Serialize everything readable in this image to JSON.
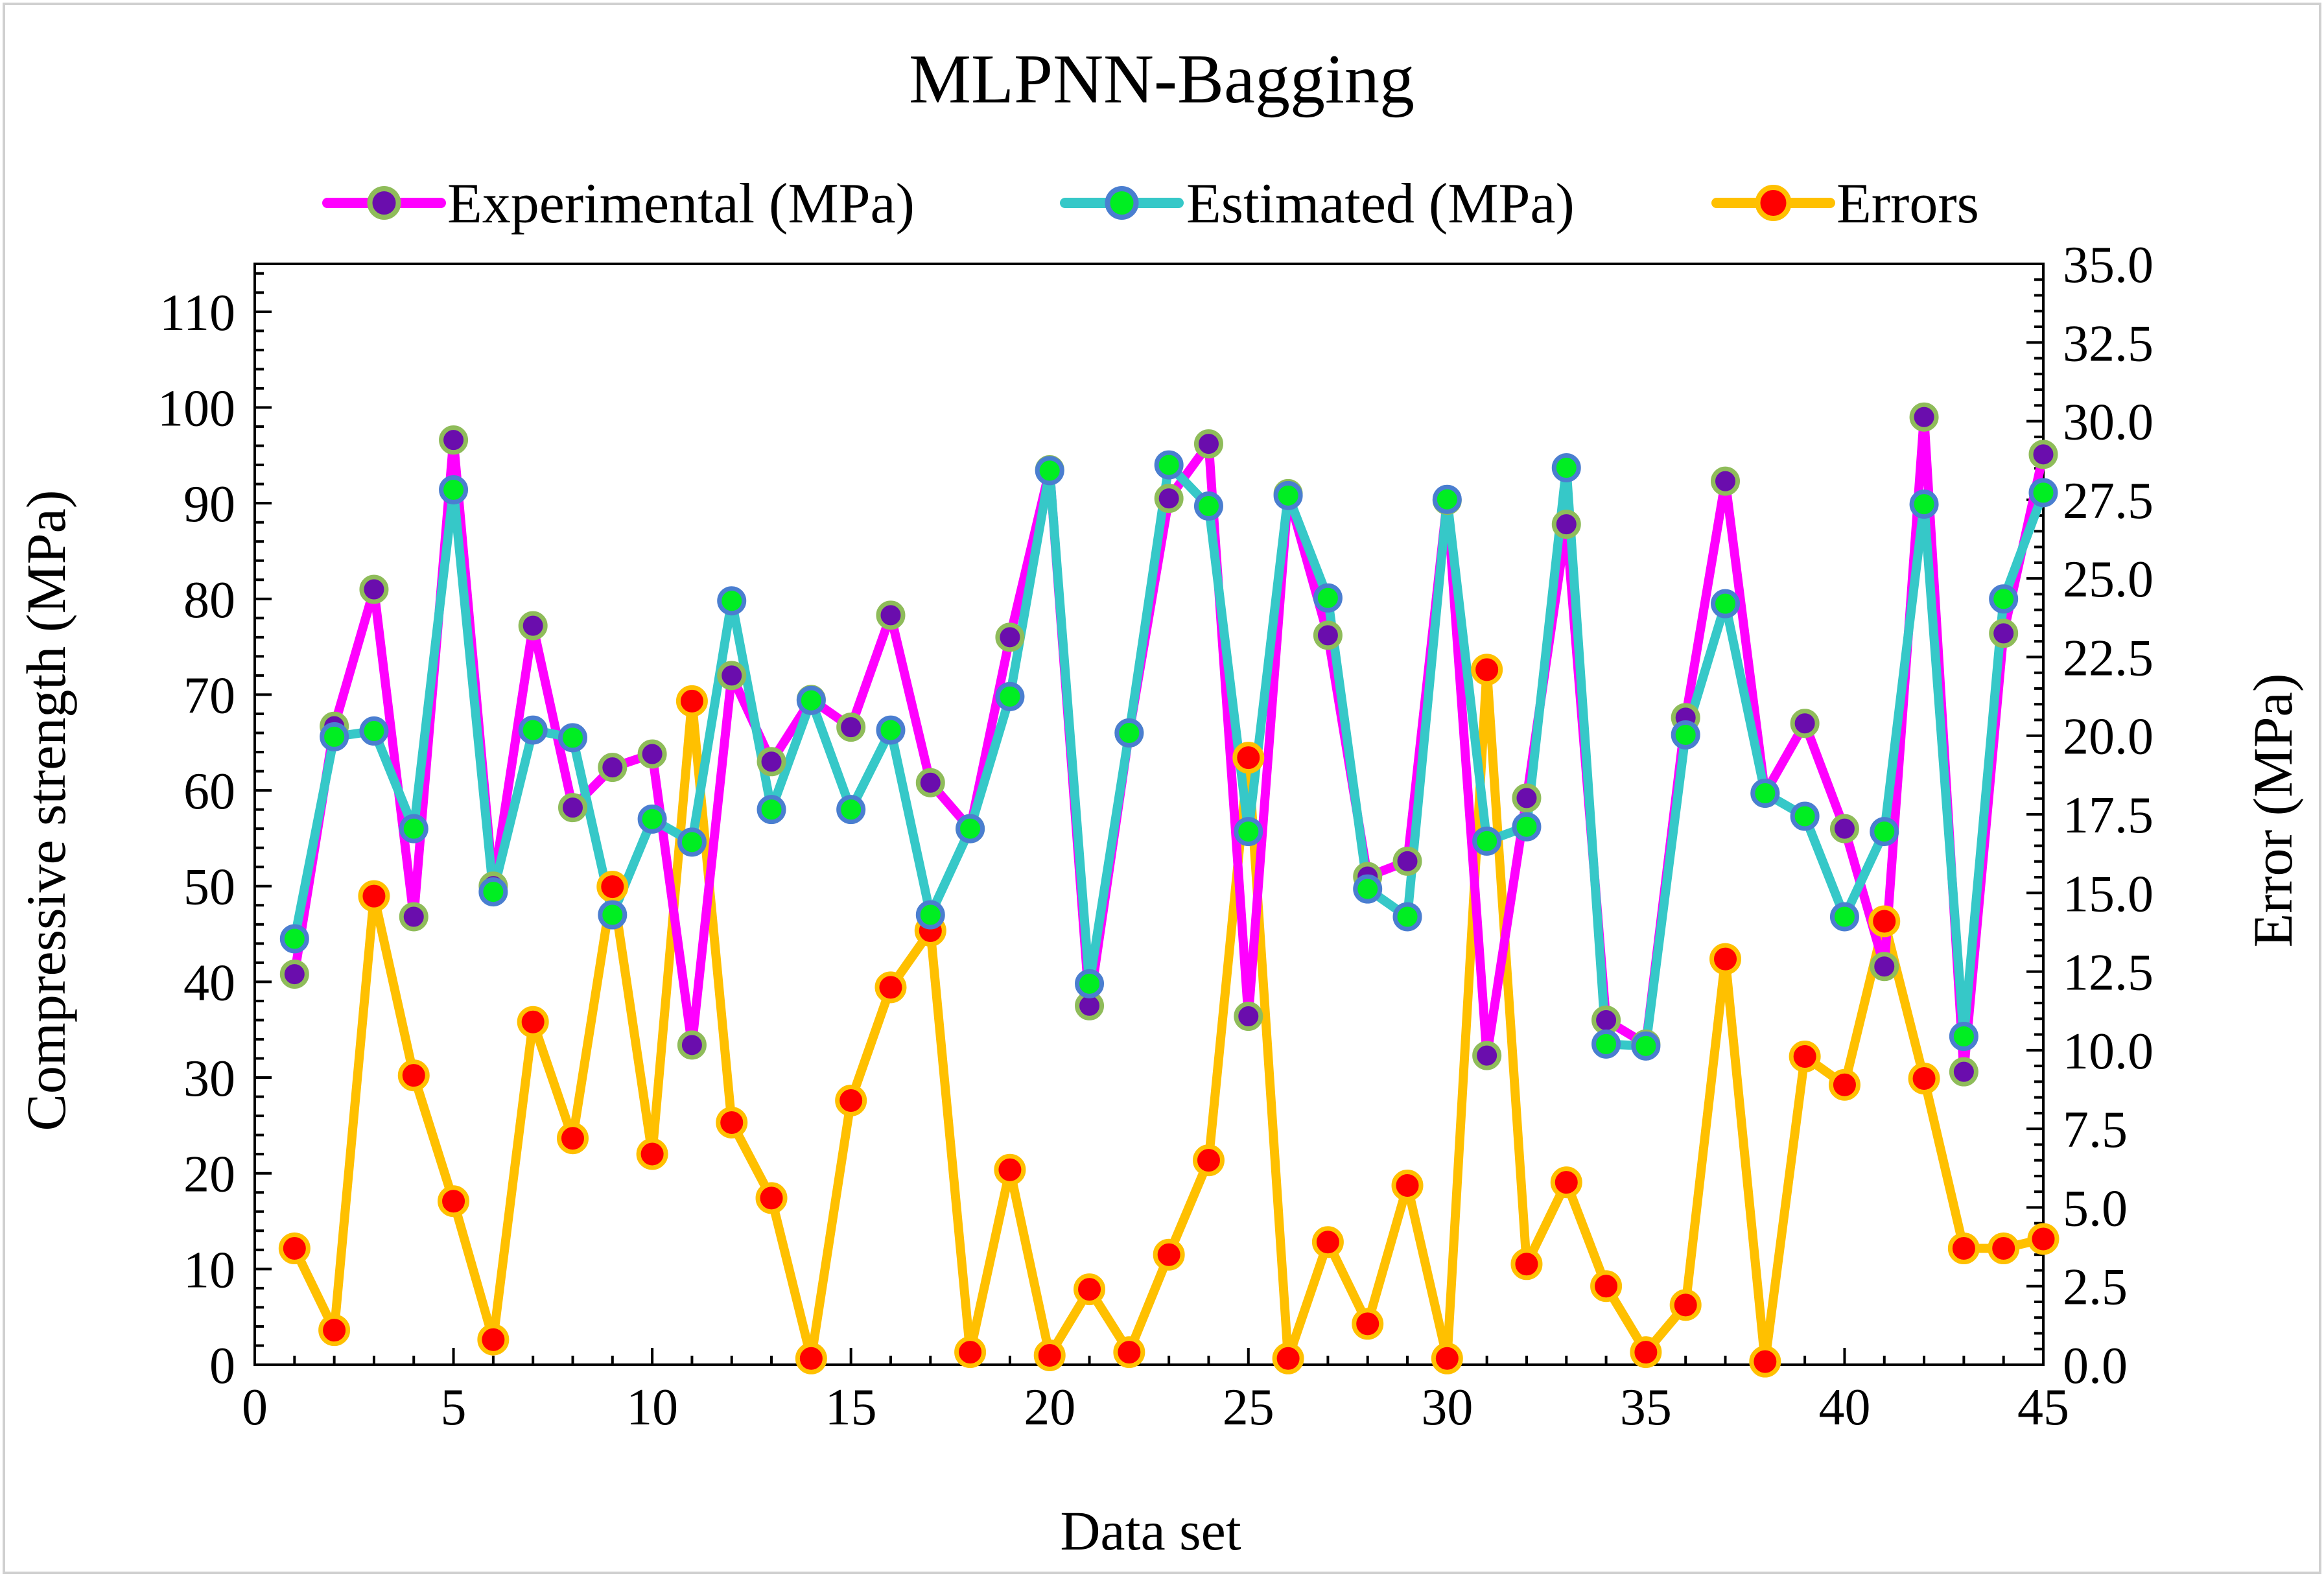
{
  "chart_data": {
    "type": "line",
    "title": "MLPNN-Bagging",
    "xlabel": "Data set",
    "ylabel": "Compressive strength (MPa)",
    "y2label": "Error (MPa)",
    "xlim": [
      0,
      45
    ],
    "ylim": [
      0,
      115
    ],
    "y2lim": [
      0,
      35
    ],
    "xticks": [
      0,
      5,
      10,
      15,
      20,
      25,
      30,
      35,
      40,
      45
    ],
    "yticks": [
      0,
      10,
      20,
      30,
      40,
      50,
      60,
      70,
      80,
      90,
      100,
      110
    ],
    "y2ticks": [
      "0.0",
      "2.5",
      "5.0",
      "7.5",
      "10.0",
      "12.5",
      "15.0",
      "17.5",
      "20.0",
      "22.5",
      "25.0",
      "27.5",
      "30.0",
      "32.5",
      "35.0"
    ],
    "legend_position": "top",
    "x": [
      1,
      2,
      3,
      4,
      5,
      6,
      7,
      8,
      9,
      10,
      11,
      12,
      13,
      14,
      15,
      16,
      17,
      18,
      19,
      20,
      21,
      22,
      23,
      24,
      25,
      26,
      27,
      28,
      29,
      30,
      31,
      32,
      33,
      34,
      35,
      36,
      37,
      38,
      39,
      40,
      41,
      42,
      43,
      44,
      45
    ],
    "series": [
      {
        "name": "Experimental (MPa)",
        "axis": "left",
        "line_color": "#ff00ff",
        "marker_fill": "#6a0dad",
        "marker_edge": "#8fbc5a",
        "values": [
          40.8,
          66.7,
          81.0,
          46.8,
          96.6,
          50.0,
          77.2,
          58.2,
          62.4,
          63.8,
          33.4,
          72.0,
          63.0,
          69.5,
          66.6,
          78.3,
          60.8,
          56.0,
          76.0,
          93.5,
          37.5,
          66.0,
          90.5,
          96.2,
          36.4,
          91.0,
          76.2,
          51.0,
          52.6,
          90.3,
          32.3,
          59.2,
          87.8,
          36.0,
          33.5,
          67.6,
          92.3,
          59.7,
          67.0,
          56.0,
          41.6,
          99.0,
          30.6,
          76.4,
          95.1
        ]
      },
      {
        "name": "Estimated (MPa)",
        "axis": "left",
        "line_color": "#36c8c8",
        "marker_fill": "#00ee22",
        "marker_edge": "#4a7ed0",
        "values": [
          44.5,
          65.6,
          66.2,
          56.0,
          91.4,
          49.4,
          66.3,
          65.5,
          47.0,
          57.0,
          54.6,
          79.8,
          58.0,
          69.4,
          58.0,
          66.3,
          47.0,
          56.0,
          69.8,
          93.4,
          39.8,
          66.0,
          94.0,
          89.7,
          55.7,
          90.8,
          80.1,
          49.7,
          46.8,
          90.4,
          54.7,
          56.2,
          93.7,
          33.5,
          33.3,
          65.8,
          79.5,
          59.7,
          57.3,
          46.8,
          55.7,
          89.9,
          34.3,
          80.0,
          91.1
        ]
      },
      {
        "name": "Errors",
        "axis": "right",
        "line_color": "#ffc000",
        "marker_fill": "#ff0000",
        "marker_edge": "#ffc000",
        "values": [
          3.7,
          1.1,
          14.9,
          9.2,
          5.2,
          0.8,
          10.9,
          7.2,
          15.2,
          6.7,
          21.1,
          7.7,
          5.3,
          0.2,
          8.4,
          12.0,
          13.8,
          0.4,
          6.2,
          0.3,
          2.4,
          0.4,
          3.5,
          6.5,
          19.3,
          0.2,
          3.9,
          1.3,
          5.7,
          0.2,
          22.1,
          3.2,
          5.8,
          2.5,
          0.4,
          1.9,
          12.9,
          0.1,
          9.8,
          8.9,
          14.1,
          9.1,
          3.7,
          3.7,
          4.0
        ]
      }
    ]
  }
}
